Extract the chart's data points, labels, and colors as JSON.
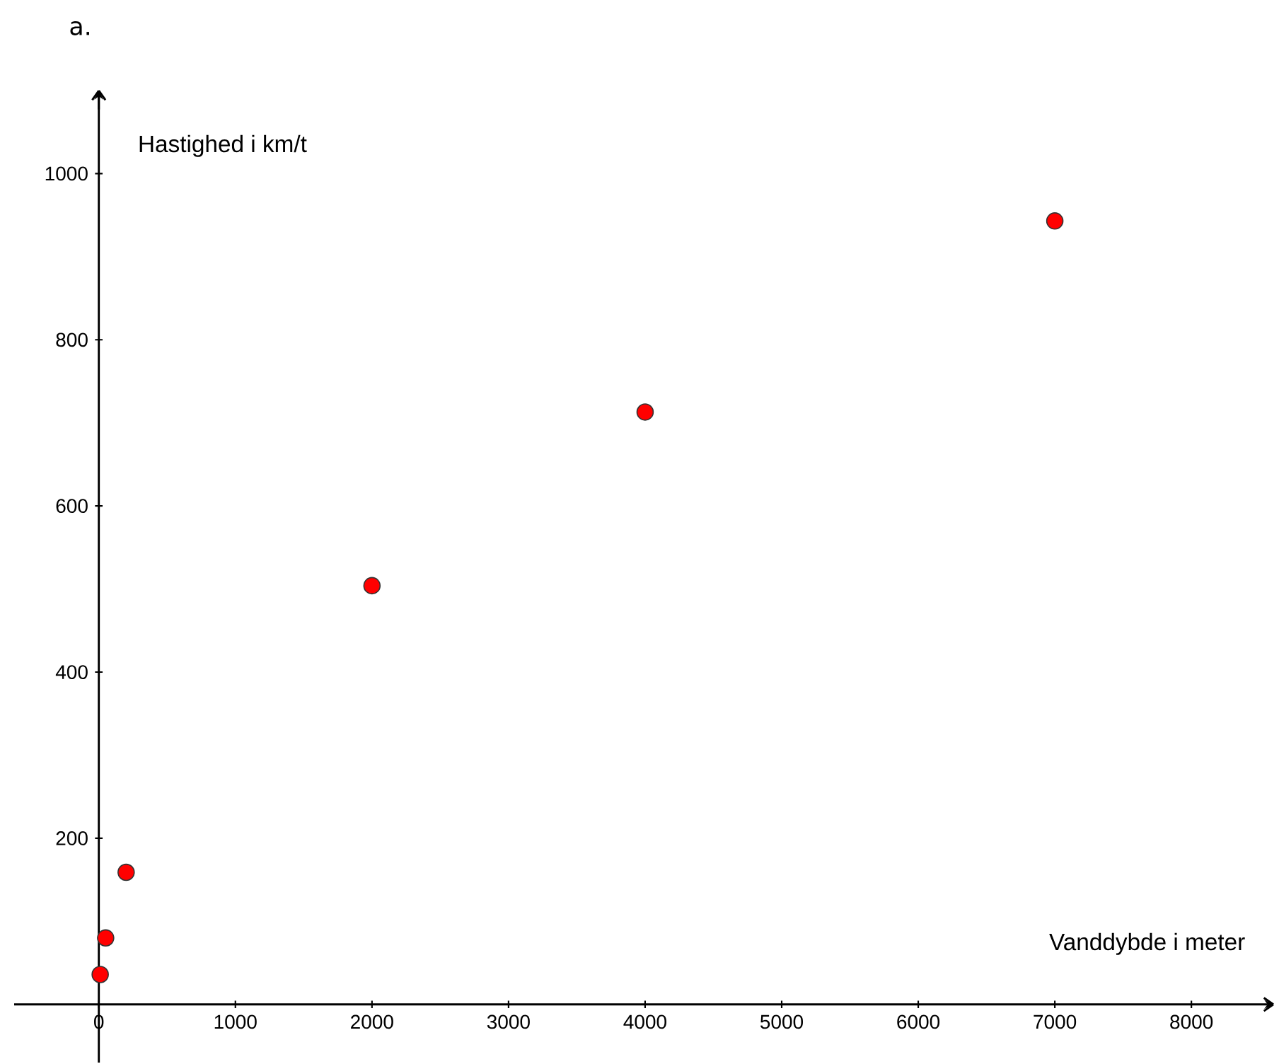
{
  "chart_data": {
    "type": "scatter",
    "title": "a.",
    "xlabel": "Vanddybde i meter",
    "ylabel": "Hastighed i km/t",
    "x": [
      10,
      50,
      200,
      2000,
      4000,
      7000
    ],
    "series": [
      {
        "color": "#ff0000",
        "values": [
          36,
          80,
          159,
          504,
          713,
          943
        ]
      }
    ],
    "xlim": [
      -620,
      8600
    ],
    "ylim": [
      -70,
      1100
    ],
    "xticks": [
      0,
      1000,
      2000,
      3000,
      4000,
      5000,
      6000,
      7000,
      8000
    ],
    "yticks": [
      200,
      400,
      600,
      800,
      1000
    ],
    "grid": false
  }
}
